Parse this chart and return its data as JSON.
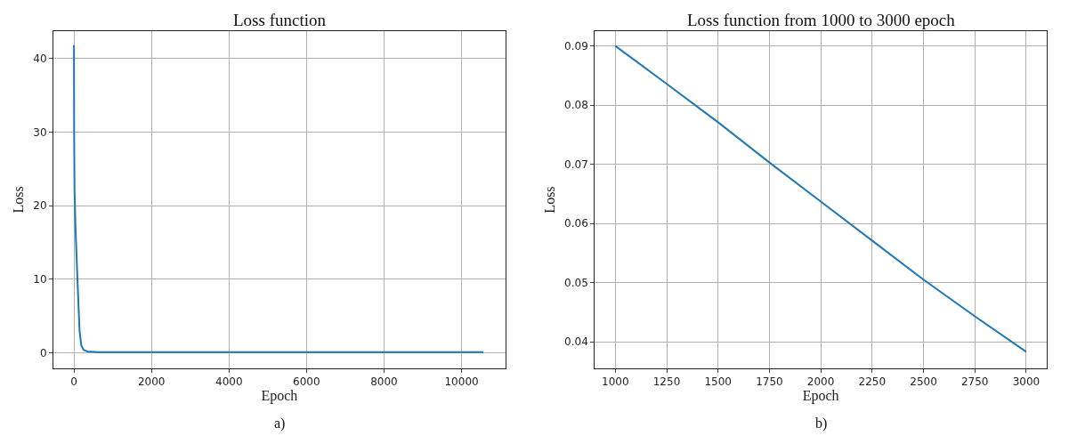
{
  "chart_data": [
    {
      "type": "line",
      "title": "Loss function",
      "xlabel": "Epoch",
      "ylabel": "Loss",
      "annotations": [
        "a)"
      ],
      "x": [
        0,
        5,
        15,
        40,
        90,
        145,
        190,
        250,
        350,
        600,
        1000,
        2000,
        4000,
        6000,
        8000,
        10560
      ],
      "series": [
        {
          "color": "#1f77b4",
          "values": [
            41.8,
            30,
            22,
            17,
            10,
            3,
            1,
            0.4,
            0.2,
            0.1,
            0.1,
            0.1,
            0.1,
            0.1,
            0.1,
            0.1
          ]
        }
      ],
      "xlim": [
        -530,
        11130
      ],
      "ylim": [
        -2.1,
        43.7
      ],
      "xticks": [
        0,
        2000,
        4000,
        6000,
        8000,
        10000
      ],
      "yticks": [
        0,
        10,
        20,
        30,
        40
      ],
      "grid": true,
      "marker": "none",
      "line_style": "solid"
    },
    {
      "type": "line",
      "title": "Loss function from 1000 to 3000 epoch",
      "xlabel": "Epoch",
      "ylabel": "Loss",
      "annotations": [
        "b)"
      ],
      "x": [
        1000,
        1250,
        1500,
        1750,
        2000,
        2250,
        2500,
        2750,
        3000
      ],
      "series": [
        {
          "color": "#1f77b4",
          "values": [
            0.09,
            0.0836,
            0.0771,
            0.0703,
            0.0637,
            0.0571,
            0.0505,
            0.0443,
            0.0383
          ]
        }
      ],
      "xlim": [
        900,
        3100
      ],
      "ylim": [
        0.0355,
        0.0925
      ],
      "xticks": [
        1000,
        1250,
        1500,
        1750,
        2000,
        2250,
        2500,
        2750,
        3000
      ],
      "yticks": [
        0.04,
        0.05,
        0.06,
        0.07,
        0.08,
        0.09
      ],
      "grid": true,
      "marker": "none",
      "line_style": "solid"
    }
  ]
}
